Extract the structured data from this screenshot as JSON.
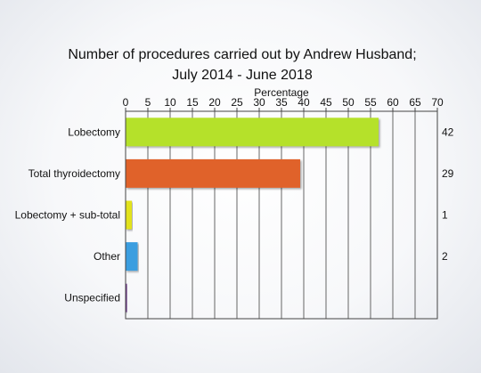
{
  "chart_data": {
    "type": "bar",
    "orientation": "horizontal",
    "title_lines": [
      "Number of procedures carried out by Andrew Husband;",
      "July 2014 - June 2018"
    ],
    "xlabel": "Percentage",
    "xlim": [
      0,
      70
    ],
    "xticks": [
      0,
      5,
      10,
      15,
      20,
      25,
      30,
      35,
      40,
      45,
      50,
      55,
      60,
      65,
      70
    ],
    "grid": true,
    "categories": [
      "Lobectomy",
      "Total thyroidectomy",
      "Lobectomy + sub-total",
      "Other",
      "Unspecified"
    ],
    "values": [
      56.8,
      39.2,
      1.4,
      2.7,
      0.3
    ],
    "counts": [
      "42",
      "29",
      "1",
      "2",
      ""
    ],
    "colors": [
      "#b5e12b",
      "#e0622b",
      "#e2e21f",
      "#3b9ee0",
      "#6b2f8a"
    ]
  }
}
